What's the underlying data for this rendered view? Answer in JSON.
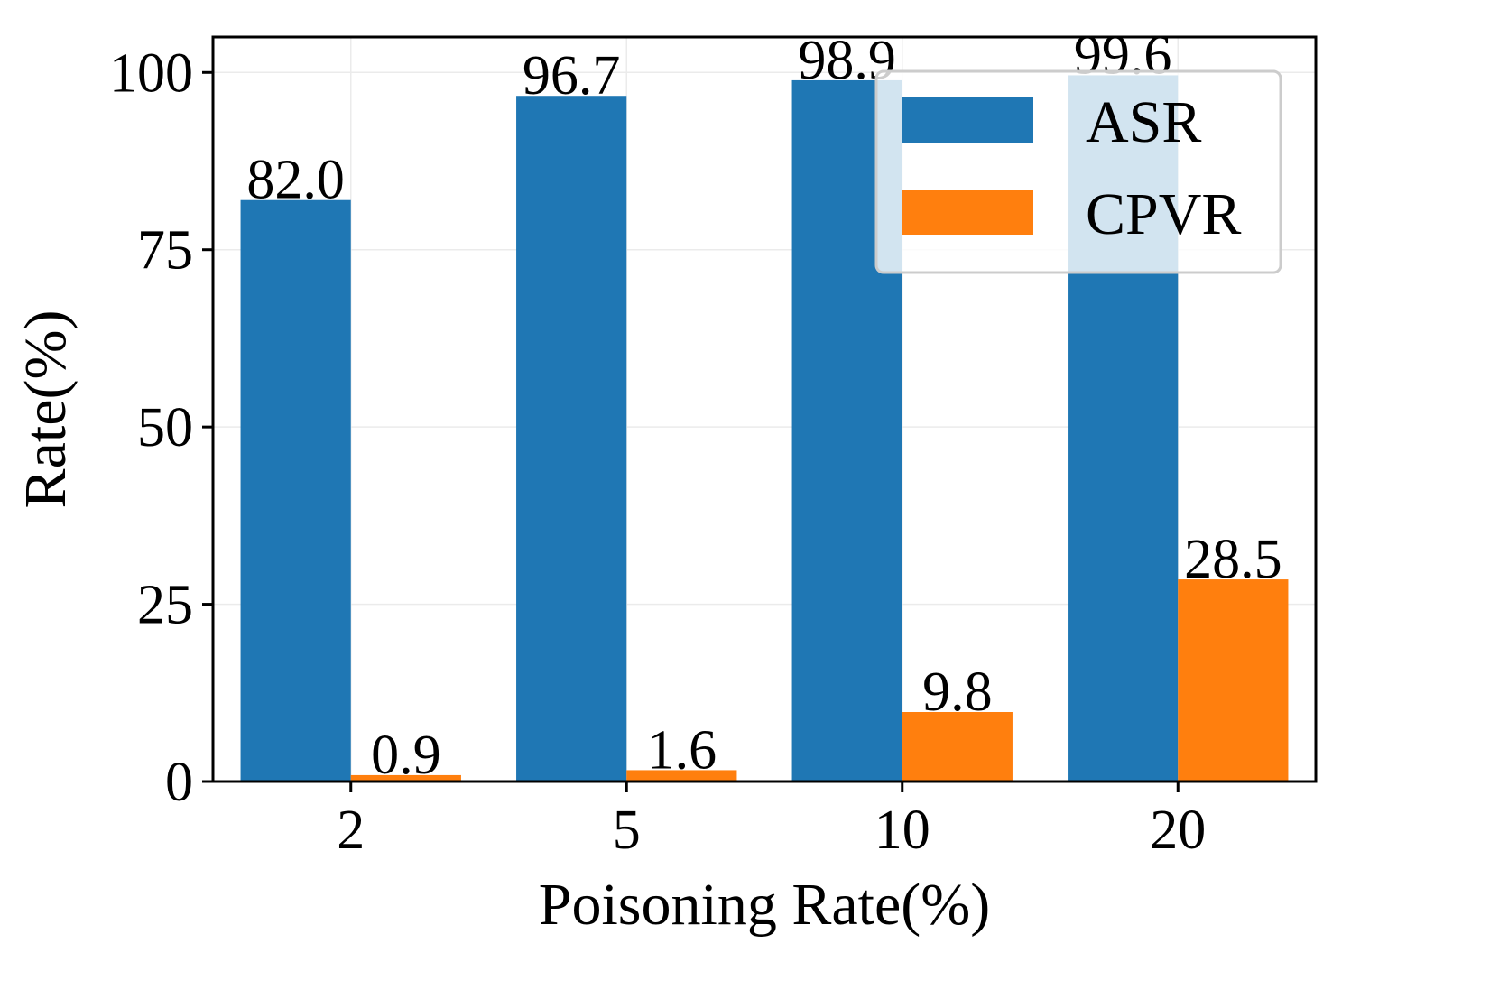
{
  "chart_data": {
    "type": "bar",
    "title": "",
    "xlabel": "Poisoning Rate(%)",
    "ylabel": "Rate(%)",
    "categories": [
      "2",
      "5",
      "10",
      "20"
    ],
    "series": [
      {
        "name": "ASR",
        "color": "#1f77b4",
        "values": [
          82.0,
          96.7,
          98.9,
          99.6
        ],
        "labels": [
          "82.0",
          "96.7",
          "98.9",
          "99.6"
        ]
      },
      {
        "name": "CPVR",
        "color": "#ff7f0e",
        "values": [
          0.9,
          1.6,
          9.8,
          28.5
        ],
        "labels": [
          "0.9",
          "1.6",
          "9.8",
          "28.5"
        ]
      }
    ],
    "ylim": [
      0,
      105
    ],
    "yticks": [
      0,
      25,
      50,
      75,
      100
    ],
    "ytick_labels": [
      "0",
      "25",
      "50",
      "75",
      "100"
    ],
    "grid": true,
    "legend_position": "top-right"
  }
}
